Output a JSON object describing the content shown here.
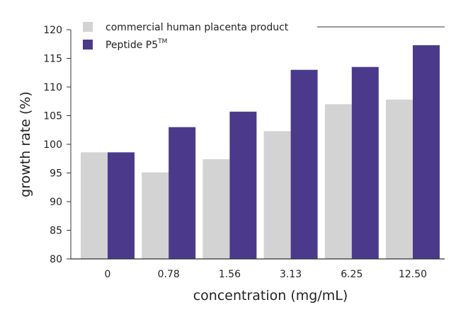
{
  "chart_data": {
    "type": "bar",
    "title": "",
    "xlabel": "concentration (mg/mL)",
    "ylabel": "growth rate (%)",
    "categories": [
      "0",
      "0.78",
      "1.56",
      "3.13",
      "6.25",
      "12.50"
    ],
    "ylim": [
      80,
      120
    ],
    "yticks": [
      "80",
      "85",
      "90",
      "95",
      "100",
      "105",
      "110",
      "115",
      "120"
    ],
    "grid": false,
    "legend_position": "top-left",
    "series": [
      {
        "name": "commercial human placenta product",
        "color": "#d3d3d3",
        "values": [
          98.6,
          95.1,
          97.4,
          102.3,
          107.0,
          107.8
        ]
      },
      {
        "name": "Peptide P5",
        "name_superscript": "TM",
        "color": "#4b3a8c",
        "values": [
          98.6,
          103.0,
          105.7,
          113.0,
          113.5,
          117.3
        ]
      }
    ]
  }
}
